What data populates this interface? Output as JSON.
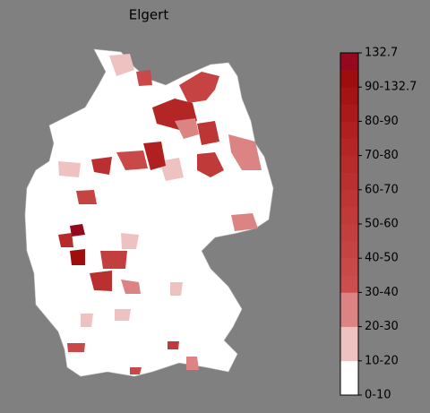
{
  "title": "Elgert",
  "colorbar": {
    "ticks": [
      "0-10",
      "10-20",
      "20-30",
      "30-40",
      "40-50",
      "50-60",
      "60-70",
      "70-80",
      "80-90",
      "90-132.7",
      "132.7"
    ],
    "colors": [
      "#ffffff",
      "#ffffff",
      "#efc2c2",
      "#efc2c2",
      "#dc8383",
      "#dc8383",
      "#cb4d4d",
      "#c94848",
      "#c64343",
      "#c33f3f",
      "#c03a3a",
      "#bd3535",
      "#ba3030",
      "#b72b2b",
      "#b42626",
      "#b02020",
      "#ab1a1a",
      "#a51414",
      "#9e0e0e",
      "#96081f"
    ]
  }
}
